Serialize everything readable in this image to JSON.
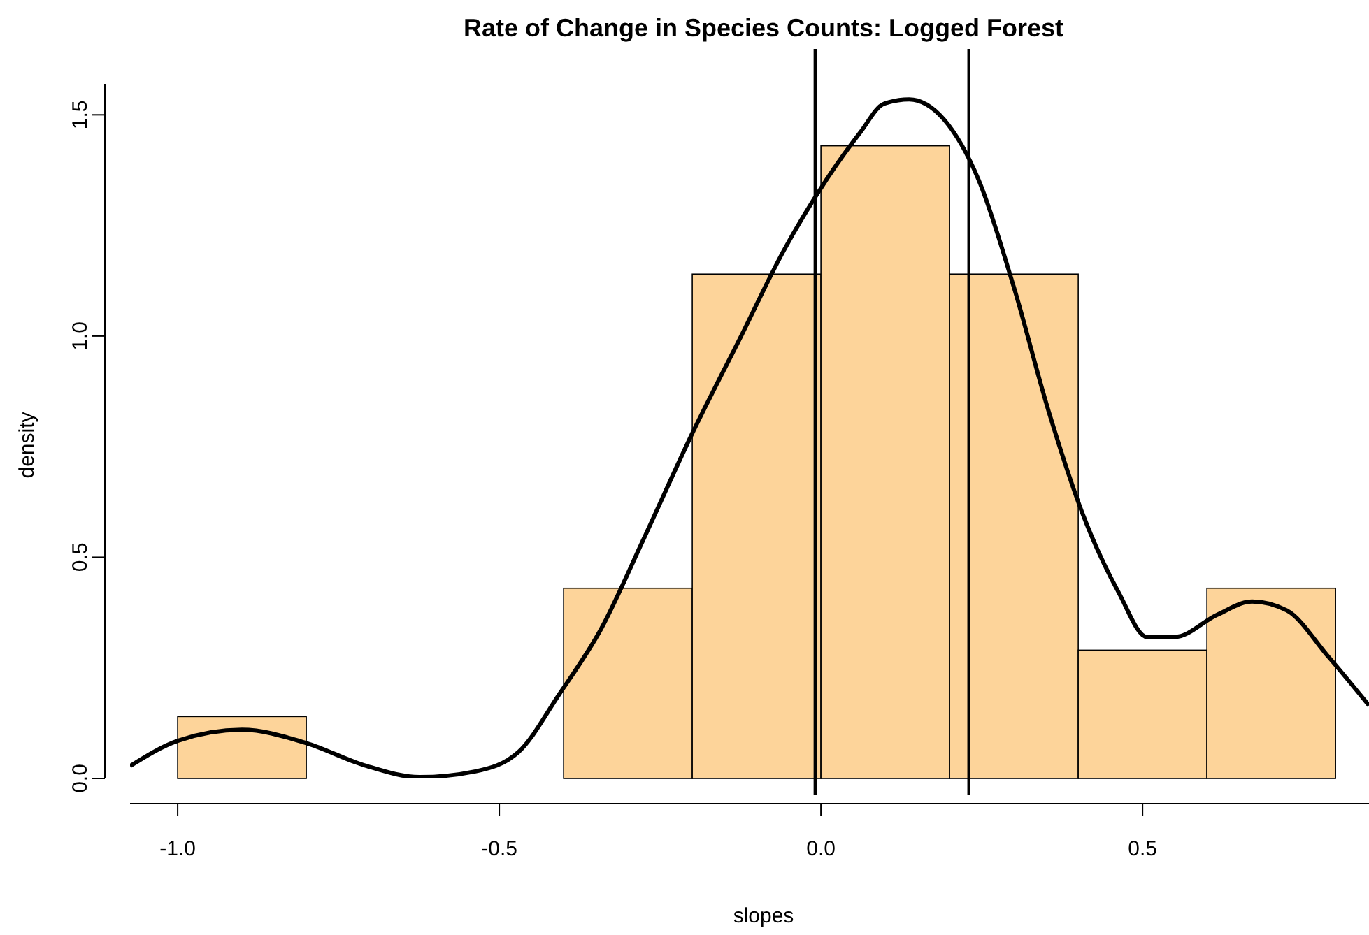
{
  "chart_data": {
    "type": "histogram",
    "title": "Rate of Change in Species Counts: Logged Forest",
    "xlabel": "slopes",
    "ylabel": "density",
    "xlim": [
      -1.074,
      0.852
    ],
    "ylim": [
      0,
      1.57
    ],
    "xticks": [
      {
        "value": -1,
        "label": "-1.0"
      },
      -0.5,
      {
        "value": 0,
        "label": "0.0"
      },
      0.5
    ],
    "yticks": [
      {
        "value": 0,
        "label": "0.0"
      },
      0.5,
      {
        "value": 1,
        "label": "1.0"
      },
      1.5
    ],
    "series": [
      {
        "color": "#fdd49a",
        "bins": [
          -1.0,
          -0.8,
          -0.6,
          -0.4,
          -0.2,
          0.0,
          0.2,
          0.4,
          0.6,
          0.8
        ],
        "values": [
          0.14,
          0,
          0,
          0.43,
          1.14,
          1.43,
          1.14,
          0.29,
          0.43
        ]
      },
      {
        "type": "line",
        "color": "#000000",
        "x": [
          -1.074,
          -1.0,
          -0.9,
          -0.8,
          -0.71,
          -0.624,
          -0.537,
          -0.47,
          -0.407,
          -0.341,
          -0.276,
          -0.2,
          -0.124,
          -0.059,
          0.007,
          0.061,
          0.098,
          0.137,
          0.191,
          0.246,
          0.3,
          0.354,
          0.409,
          0.463,
          0.507,
          0.55,
          0.616,
          0.67,
          0.724,
          0.789,
          0.852
        ],
        "values": [
          0.028,
          0.085,
          0.11,
          0.08,
          0.03,
          0.003,
          0.016,
          0.06,
          0.19,
          0.34,
          0.54,
          0.78,
          1.0,
          1.19,
          1.35,
          1.46,
          1.525,
          1.535,
          1.49,
          1.35,
          1.11,
          0.83,
          0.59,
          0.42,
          0.32,
          0.32,
          0.37,
          0.4,
          0.38,
          0.275,
          0.165
        ]
      }
    ],
    "ref_lines": [
      {
        "axis": "x",
        "value": -0.009,
        "color": "#000000"
      },
      {
        "axis": "x",
        "value": 0.23,
        "color": "#000000"
      }
    ]
  }
}
